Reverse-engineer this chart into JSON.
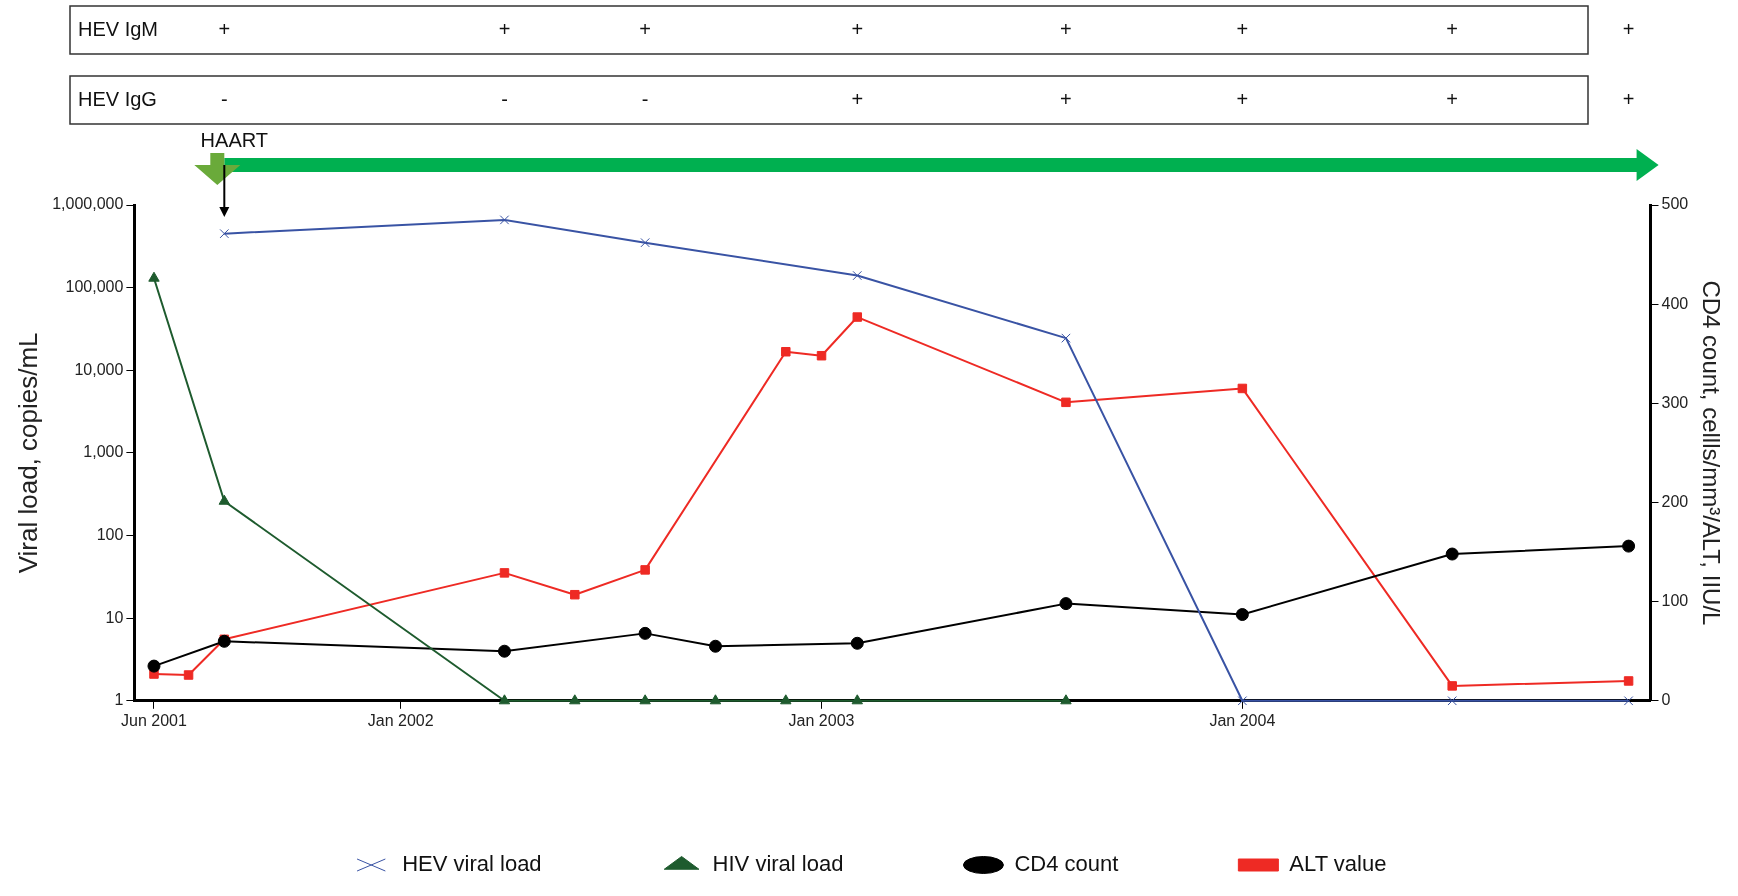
{
  "chart_data": {
    "type": "line",
    "xlabel": null,
    "ylabel": "Viral load, copies/mL",
    "y2label": "CD4 count, cellls/mm³/ALT, IIU/L",
    "xlim": [
      "2001-05-15",
      "2004-12-20"
    ],
    "xticks": [
      {
        "value": "2001-06",
        "label": "Jun 2001"
      },
      {
        "value": "2002-01",
        "label": "Jan 2002"
      },
      {
        "value": "2003-01",
        "label": "Jan 2003"
      },
      {
        "value": "2004-01",
        "label": "Jan 2004"
      }
    ],
    "ylim": [
      1,
      1000000
    ],
    "yticks": [
      1,
      10,
      100,
      {
        "value": 1000,
        "label": "1,000"
      },
      {
        "value": 10000,
        "label": "10,000"
      },
      {
        "value": 100000,
        "label": "100,000"
      },
      {
        "value": 1000000,
        "label": "1,000,000"
      }
    ],
    "y2lim": [
      0,
      500
    ],
    "y2ticks": [
      0,
      100,
      200,
      300,
      400,
      500
    ],
    "log": "y",
    "grid": false,
    "legend": "bottom",
    "series": [
      {
        "name": "HEV viral load",
        "type": "line",
        "marker": "cross",
        "color": "#3953a4",
        "x": [
          "2001-08",
          "2002-04",
          "2002-08",
          "2003-02",
          "2003-08",
          "2004-01",
          "2004-07",
          "2004-12"
        ],
        "values": [
          450000,
          660000,
          350000,
          140000,
          24500,
          1,
          1,
          1
        ]
      },
      {
        "name": "HIV viral load",
        "type": "line",
        "marker": "triangle",
        "color": "#1e5b2e",
        "x": [
          "2001-06",
          "2001-08",
          "2002-04",
          "2002-06",
          "2002-08",
          "2002-10",
          "2002-12",
          "2003-02",
          "2003-08"
        ],
        "values": [
          130000,
          260,
          1,
          1,
          1,
          1,
          1,
          1,
          1
        ]
      },
      {
        "name": "CD4 count",
        "type": "line",
        "marker": "circle",
        "color": "#000000",
        "axis": "y2",
        "x": [
          "2001-06",
          "2001-08",
          "2002-04",
          "2002-08",
          "2002-10",
          "2003-02",
          "2003-08",
          "2004-01",
          "2004-07",
          "2004-12"
        ],
        "values": [
          35,
          60,
          50,
          68,
          55,
          58,
          98,
          87,
          148,
          156
        ]
      },
      {
        "name": "ALT value",
        "type": "line",
        "marker": "square",
        "color": "#ee2a24",
        "axis": "y2",
        "x": [
          "2001-06",
          "2001-07",
          "2001-08",
          "2002-04",
          "2002-06",
          "2002-08",
          "2002-12",
          "2003-01",
          "2003-02",
          "2003-08",
          "2004-01",
          "2004-07",
          "2004-12"
        ],
        "values": [
          27,
          26,
          62,
          129,
          107,
          132,
          352,
          348,
          387,
          301,
          315,
          15,
          20
        ]
      }
    ],
    "annotations": [
      "HEV IgM",
      "+",
      "+",
      "+",
      "+",
      "+",
      "+",
      "+",
      "+",
      "HEV IgG",
      "-",
      "-",
      "-",
      "+",
      "+",
      "+",
      "+",
      "+",
      "HAART"
    ]
  }
}
